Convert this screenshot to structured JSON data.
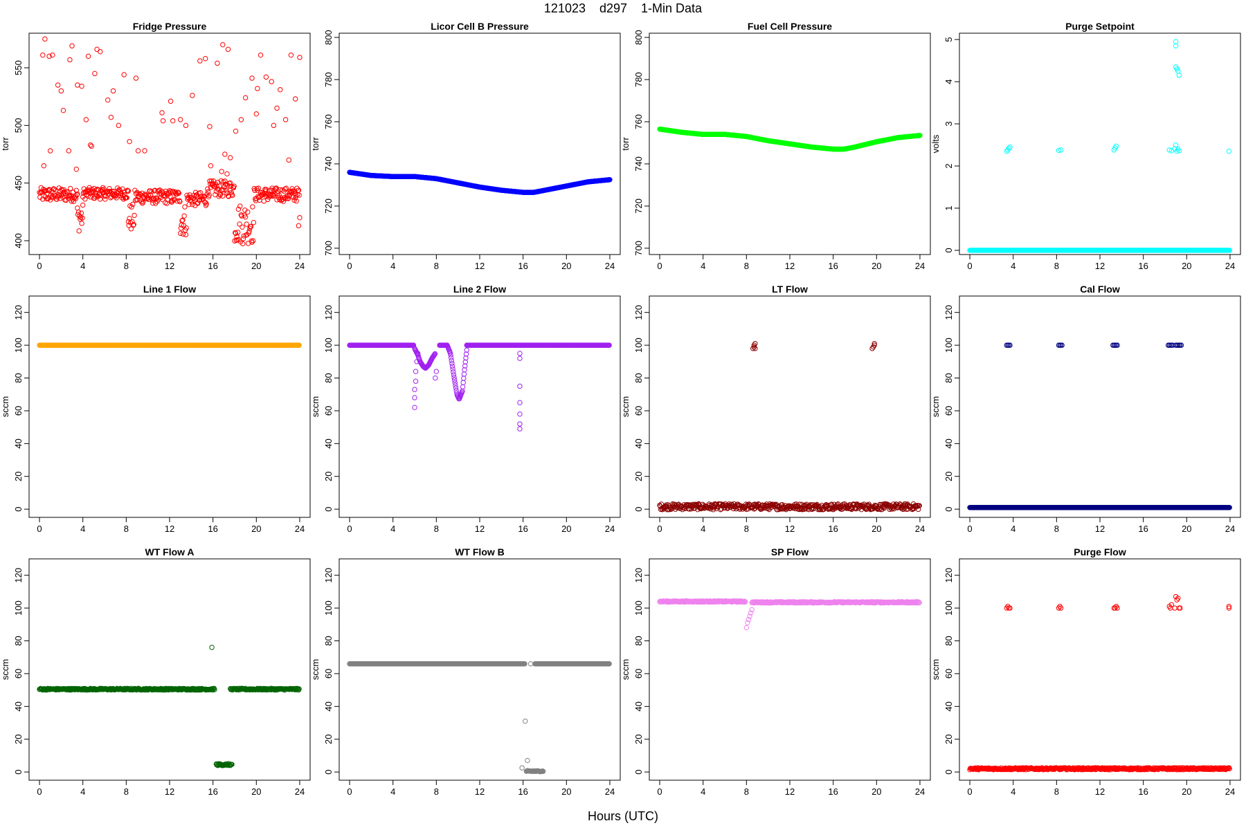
{
  "title": "121023    d297    1-Min Data",
  "xlabel": "Hours (UTC)",
  "chart_data": [
    {
      "type": "scatter",
      "title": "Fridge Pressure",
      "ylabel": "torr",
      "color": "#ff0000",
      "xlim": [
        0,
        24
      ],
      "ylim": [
        388,
        580
      ],
      "xticks": [
        0,
        4,
        8,
        12,
        16,
        20,
        24
      ],
      "yticks": [
        400,
        450,
        500,
        550
      ],
      "segments": [
        {
          "x0": 0,
          "x1": 3.5,
          "y": 440,
          "noise": 6
        },
        {
          "x0": 3.5,
          "x1": 4.0,
          "y": 420,
          "noise": 12
        },
        {
          "x0": 4.0,
          "x1": 8.2,
          "y": 441,
          "noise": 5
        },
        {
          "x0": 8.2,
          "x1": 8.8,
          "y": 420,
          "noise": 12
        },
        {
          "x0": 8.8,
          "x1": 13.0,
          "y": 438,
          "noise": 6
        },
        {
          "x0": 13.0,
          "x1": 13.6,
          "y": 418,
          "noise": 14
        },
        {
          "x0": 13.6,
          "x1": 15.5,
          "y": 436,
          "noise": 6
        },
        {
          "x0": 15.5,
          "x1": 18.0,
          "y": 445,
          "noise": 7
        },
        {
          "x0": 18.0,
          "x1": 19.8,
          "y": 415,
          "noise": 18
        },
        {
          "x0": 19.8,
          "x1": 24,
          "y": 440,
          "noise": 6
        }
      ],
      "points": [
        [
          0.3,
          561
        ],
        [
          0.5,
          575
        ],
        [
          0.9,
          560
        ],
        [
          1.2,
          561
        ],
        [
          1.7,
          535
        ],
        [
          2.0,
          530
        ],
        [
          2.2,
          513
        ],
        [
          2.8,
          557
        ],
        [
          3.0,
          569
        ],
        [
          3.5,
          535
        ],
        [
          3.9,
          534
        ],
        [
          4.3,
          505
        ],
        [
          4.5,
          560
        ],
        [
          4.7,
          483
        ],
        [
          5.1,
          545
        ],
        [
          5.3,
          566
        ],
        [
          5.6,
          564
        ],
        [
          6.3,
          522
        ],
        [
          6.6,
          507
        ],
        [
          6.8,
          530
        ],
        [
          7.3,
          500
        ],
        [
          7.8,
          544
        ],
        [
          8.3,
          486
        ],
        [
          8.9,
          541
        ],
        [
          9.1,
          478
        ],
        [
          11.3,
          511
        ],
        [
          11.4,
          504
        ],
        [
          12.1,
          521
        ],
        [
          12.3,
          504
        ],
        [
          13.0,
          505
        ],
        [
          13.5,
          500
        ],
        [
          14.1,
          526
        ],
        [
          14.8,
          556
        ],
        [
          15.3,
          558
        ],
        [
          15.7,
          499
        ],
        [
          15.8,
          465
        ],
        [
          16.4,
          554
        ],
        [
          16.9,
          570
        ],
        [
          17.1,
          475
        ],
        [
          17.4,
          566
        ],
        [
          17.6,
          472
        ],
        [
          18.1,
          495
        ],
        [
          18.6,
          505
        ],
        [
          19.0,
          524
        ],
        [
          19.6,
          541
        ],
        [
          20.1,
          532
        ],
        [
          20.4,
          561
        ],
        [
          20.9,
          542
        ],
        [
          21.4,
          538
        ],
        [
          21.9,
          515
        ],
        [
          22.2,
          531
        ],
        [
          22.7,
          505
        ],
        [
          23.2,
          561
        ],
        [
          23.6,
          523
        ],
        [
          24.0,
          559
        ],
        [
          23.9,
          413
        ],
        [
          24.0,
          420
        ],
        [
          0.4,
          465
        ],
        [
          1.0,
          478
        ],
        [
          2.7,
          478
        ],
        [
          3.4,
          462
        ],
        [
          4.8,
          482
        ],
        [
          9.7,
          478
        ],
        [
          16.8,
          460
        ],
        [
          17.3,
          458
        ],
        [
          20.0,
          510
        ],
        [
          21.6,
          500
        ],
        [
          23.0,
          470
        ]
      ]
    },
    {
      "type": "scatter",
      "title": "Licor Cell B Pressure",
      "ylabel": "torr",
      "color": "#0000ff",
      "xlim": [
        0,
        24
      ],
      "ylim": [
        697,
        802
      ],
      "xticks": [
        0,
        4,
        8,
        12,
        16,
        20,
        24
      ],
      "yticks": [
        700,
        720,
        740,
        760,
        780,
        800
      ],
      "curve": [
        [
          0,
          736
        ],
        [
          2,
          734.5
        ],
        [
          4,
          734
        ],
        [
          6,
          734
        ],
        [
          8,
          733
        ],
        [
          10,
          731
        ],
        [
          12,
          729
        ],
        [
          14,
          727.5
        ],
        [
          16,
          726.5
        ],
        [
          17,
          726.5
        ],
        [
          18,
          727.5
        ],
        [
          20,
          729.5
        ],
        [
          22,
          731.5
        ],
        [
          24,
          732.5
        ]
      ],
      "dot_size": 4
    },
    {
      "type": "scatter",
      "title": "Fuel Cell Pressure",
      "ylabel": "torr",
      "color": "#00ff00",
      "xlim": [
        0,
        24
      ],
      "ylim": [
        697,
        802
      ],
      "xticks": [
        0,
        4,
        8,
        12,
        16,
        20,
        24
      ],
      "yticks": [
        700,
        720,
        740,
        760,
        780,
        800
      ],
      "curve": [
        [
          0,
          756.5
        ],
        [
          2,
          755
        ],
        [
          4,
          754
        ],
        [
          6,
          754
        ],
        [
          8,
          753
        ],
        [
          10,
          751
        ],
        [
          12,
          749.5
        ],
        [
          14,
          748
        ],
        [
          16,
          747
        ],
        [
          17,
          747
        ],
        [
          18,
          748
        ],
        [
          20,
          750.5
        ],
        [
          22,
          752.5
        ],
        [
          24,
          753.5
        ]
      ],
      "dot_size": 4
    },
    {
      "type": "scatter",
      "title": "Purge Setpoint",
      "ylabel": "volts",
      "color": "#00ffff",
      "xlim": [
        0,
        24
      ],
      "ylim": [
        -0.1,
        5.15
      ],
      "xticks": [
        0,
        4,
        8,
        12,
        16,
        20,
        24
      ],
      "yticks": [
        0,
        1,
        2,
        3,
        4,
        5
      ],
      "segments": [
        {
          "x0": 0,
          "x1": 24,
          "y": 0,
          "noise": 0
        }
      ],
      "points": [
        [
          3.4,
          2.35
        ],
        [
          3.5,
          2.38
        ],
        [
          3.6,
          2.42
        ],
        [
          3.7,
          2.45
        ],
        [
          8.2,
          2.37
        ],
        [
          8.4,
          2.38
        ],
        [
          13.3,
          2.38
        ],
        [
          13.4,
          2.43
        ],
        [
          13.5,
          2.47
        ],
        [
          18.4,
          2.38
        ],
        [
          18.6,
          2.36
        ],
        [
          18.9,
          2.41
        ],
        [
          19.0,
          2.5
        ],
        [
          19.1,
          2.35
        ],
        [
          19.2,
          2.4
        ],
        [
          19.3,
          2.36
        ],
        [
          19.0,
          4.95
        ],
        [
          19.0,
          4.85
        ],
        [
          19.0,
          4.35
        ],
        [
          19.1,
          4.3
        ],
        [
          19.2,
          4.25
        ],
        [
          19.3,
          4.15
        ],
        [
          19.1,
          4.3
        ],
        [
          23.9,
          2.35
        ]
      ]
    },
    {
      "type": "scatter",
      "title": "Line 1 Flow",
      "ylabel": "sccm",
      "color": "#ffa500",
      "xlim": [
        0,
        24
      ],
      "ylim": [
        -5,
        130
      ],
      "xticks": [
        0,
        4,
        8,
        12,
        16,
        20,
        24
      ],
      "yticks": [
        0,
        20,
        40,
        60,
        80,
        100,
        120
      ],
      "segments": [
        {
          "x0": 0,
          "x1": 24,
          "y": 100,
          "noise": 0
        }
      ]
    },
    {
      "type": "scatter",
      "title": "Line 2 Flow",
      "ylabel": "sccm",
      "color": "#a020f0",
      "xlim": [
        0,
        24
      ],
      "ylim": [
        -5,
        130
      ],
      "xticks": [
        0,
        4,
        8,
        12,
        16,
        20,
        24
      ],
      "yticks": [
        0,
        20,
        40,
        60,
        80,
        100,
        120
      ],
      "segments": [
        {
          "x0": 0,
          "x1": 5.9,
          "y": 100,
          "noise": 0
        },
        {
          "x0": 8.3,
          "x1": 9.0,
          "y": 100,
          "noise": 0
        },
        {
          "x0": 10.8,
          "x1": 24,
          "y": 100,
          "noise": 0
        }
      ],
      "curve": [
        [
          6.0,
          98
        ],
        [
          6.3,
          94
        ],
        [
          6.5,
          90
        ],
        [
          6.8,
          87
        ],
        [
          7.0,
          86
        ],
        [
          7.3,
          88
        ],
        [
          7.6,
          92
        ],
        [
          7.9,
          95
        ]
      ],
      "curve2": [
        [
          9.0,
          100
        ],
        [
          9.3,
          95
        ],
        [
          9.6,
          82
        ],
        [
          9.9,
          70
        ],
        [
          10.1,
          67
        ],
        [
          10.4,
          72
        ],
        [
          10.6,
          85
        ],
        [
          10.8,
          97
        ]
      ],
      "points": [
        [
          6.0,
          62
        ],
        [
          6.0,
          68
        ],
        [
          6.0,
          73
        ],
        [
          6.1,
          78
        ],
        [
          6.1,
          84
        ],
        [
          6.2,
          90
        ],
        [
          6.3,
          95
        ],
        [
          7.9,
          80
        ],
        [
          8.0,
          84
        ],
        [
          15.7,
          92
        ],
        [
          15.7,
          95
        ],
        [
          15.7,
          75
        ],
        [
          15.7,
          65
        ],
        [
          15.7,
          58
        ],
        [
          15.7,
          52
        ],
        [
          15.7,
          49
        ]
      ]
    },
    {
      "type": "scatter",
      "title": "LT Flow",
      "ylabel": "sccm",
      "color": "#8b0000",
      "xlim": [
        0,
        24
      ],
      "ylim": [
        -5,
        130
      ],
      "xticks": [
        0,
        4,
        8,
        12,
        16,
        20,
        24
      ],
      "yticks": [
        0,
        20,
        40,
        60,
        80,
        100,
        120
      ],
      "segments": [
        {
          "x0": 0,
          "x1": 24,
          "y": 1.5,
          "noise": 1.8
        }
      ],
      "points": [
        [
          8.6,
          98
        ],
        [
          8.7,
          100
        ],
        [
          8.8,
          101
        ],
        [
          8.7,
          99
        ],
        [
          8.8,
          98
        ],
        [
          19.6,
          98
        ],
        [
          19.7,
          99
        ],
        [
          19.8,
          100
        ],
        [
          19.8,
          101
        ]
      ]
    },
    {
      "type": "scatter",
      "title": "Cal Flow",
      "ylabel": "sccm",
      "color": "#000080",
      "xlim": [
        0,
        24
      ],
      "ylim": [
        -5,
        130
      ],
      "xticks": [
        0,
        4,
        8,
        12,
        16,
        20,
        24
      ],
      "yticks": [
        0,
        20,
        40,
        60,
        80,
        100,
        120
      ],
      "segments": [
        {
          "x0": 0,
          "x1": 24,
          "y": 1,
          "noise": 0
        }
      ],
      "points": [
        [
          3.4,
          100
        ],
        [
          3.5,
          100
        ],
        [
          3.6,
          100
        ],
        [
          3.7,
          100
        ],
        [
          8.2,
          100
        ],
        [
          8.3,
          100
        ],
        [
          8.4,
          100
        ],
        [
          8.5,
          100
        ],
        [
          13.2,
          100
        ],
        [
          13.3,
          100
        ],
        [
          13.4,
          100
        ],
        [
          13.5,
          100
        ],
        [
          13.6,
          100
        ],
        [
          18.3,
          100
        ],
        [
          18.4,
          100
        ],
        [
          18.5,
          100
        ],
        [
          18.6,
          100
        ],
        [
          18.7,
          100
        ],
        [
          19.0,
          100
        ],
        [
          19.1,
          100
        ],
        [
          19.2,
          100
        ],
        [
          19.3,
          100
        ],
        [
          19.4,
          100
        ],
        [
          19.5,
          100
        ]
      ]
    },
    {
      "type": "scatter",
      "title": "WT Flow A",
      "ylabel": "sccm",
      "color": "#006400",
      "xlim": [
        0,
        24
      ],
      "ylim": [
        -5,
        130
      ],
      "xticks": [
        0,
        4,
        8,
        12,
        16,
        20,
        24
      ],
      "yticks": [
        0,
        20,
        40,
        60,
        80,
        100,
        120
      ],
      "segments": [
        {
          "x0": 0,
          "x1": 16.2,
          "y": 50.5,
          "noise": 0.5
        },
        {
          "x0": 17.6,
          "x1": 24,
          "y": 50.5,
          "noise": 0.5
        },
        {
          "x0": 16.3,
          "x1": 17.8,
          "y": 4.5,
          "noise": 0.6
        }
      ],
      "points": [
        [
          15.9,
          76
        ]
      ]
    },
    {
      "type": "scatter",
      "title": "WT Flow B",
      "ylabel": "sccm",
      "color": "#808080",
      "xlim": [
        0,
        24
      ],
      "ylim": [
        -5,
        130
      ],
      "xticks": [
        0,
        4,
        8,
        12,
        16,
        20,
        24
      ],
      "yticks": [
        0,
        20,
        40,
        60,
        80,
        100,
        120
      ],
      "segments": [
        {
          "x0": 0,
          "x1": 16.2,
          "y": 66,
          "noise": 0
        },
        {
          "x0": 17.1,
          "x1": 24,
          "y": 66,
          "noise": 0
        },
        {
          "x0": 16.3,
          "x1": 17.9,
          "y": 0.5,
          "noise": 0.3
        }
      ],
      "points": [
        [
          16.2,
          31
        ],
        [
          16.4,
          7
        ],
        [
          15.9,
          2.5
        ],
        [
          16.7,
          66
        ]
      ]
    },
    {
      "type": "scatter",
      "title": "SP Flow",
      "ylabel": "sccm",
      "color": "#ee82ee",
      "xlim": [
        0,
        24
      ],
      "ylim": [
        -5,
        130
      ],
      "xticks": [
        0,
        4,
        8,
        12,
        16,
        20,
        24
      ],
      "yticks": [
        0,
        20,
        40,
        60,
        80,
        100,
        120
      ],
      "segments": [
        {
          "x0": 0,
          "x1": 7.9,
          "y": 104,
          "noise": 0.4
        },
        {
          "x0": 8.5,
          "x1": 24,
          "y": 103.5,
          "noise": 0.4
        }
      ],
      "points": [
        [
          8.0,
          88
        ],
        [
          8.1,
          91
        ],
        [
          8.2,
          93
        ],
        [
          8.3,
          95
        ],
        [
          8.4,
          97
        ],
        [
          8.5,
          99
        ]
      ]
    },
    {
      "type": "scatter",
      "title": "Purge Flow",
      "ylabel": "sccm",
      "color": "#ff0000",
      "xlim": [
        0,
        24
      ],
      "ylim": [
        -5,
        130
      ],
      "xticks": [
        0,
        4,
        8,
        12,
        16,
        20,
        24
      ],
      "yticks": [
        0,
        20,
        40,
        60,
        80,
        100,
        120
      ],
      "segments": [
        {
          "x0": 0,
          "x1": 24,
          "y": 2,
          "noise": 0.6
        }
      ],
      "points": [
        [
          3.4,
          100
        ],
        [
          3.5,
          101
        ],
        [
          3.6,
          100
        ],
        [
          3.7,
          100
        ],
        [
          8.2,
          100
        ],
        [
          8.3,
          101
        ],
        [
          8.4,
          100
        ],
        [
          13.3,
          100
        ],
        [
          13.4,
          100
        ],
        [
          13.5,
          101
        ],
        [
          13.6,
          100
        ],
        [
          18.4,
          101
        ],
        [
          18.5,
          100
        ],
        [
          18.6,
          102
        ],
        [
          18.9,
          100
        ],
        [
          19.0,
          107
        ],
        [
          19.1,
          105
        ],
        [
          19.2,
          106
        ],
        [
          19.3,
          100
        ],
        [
          19.4,
          100
        ],
        [
          23.9,
          100
        ],
        [
          23.9,
          101
        ]
      ]
    }
  ]
}
